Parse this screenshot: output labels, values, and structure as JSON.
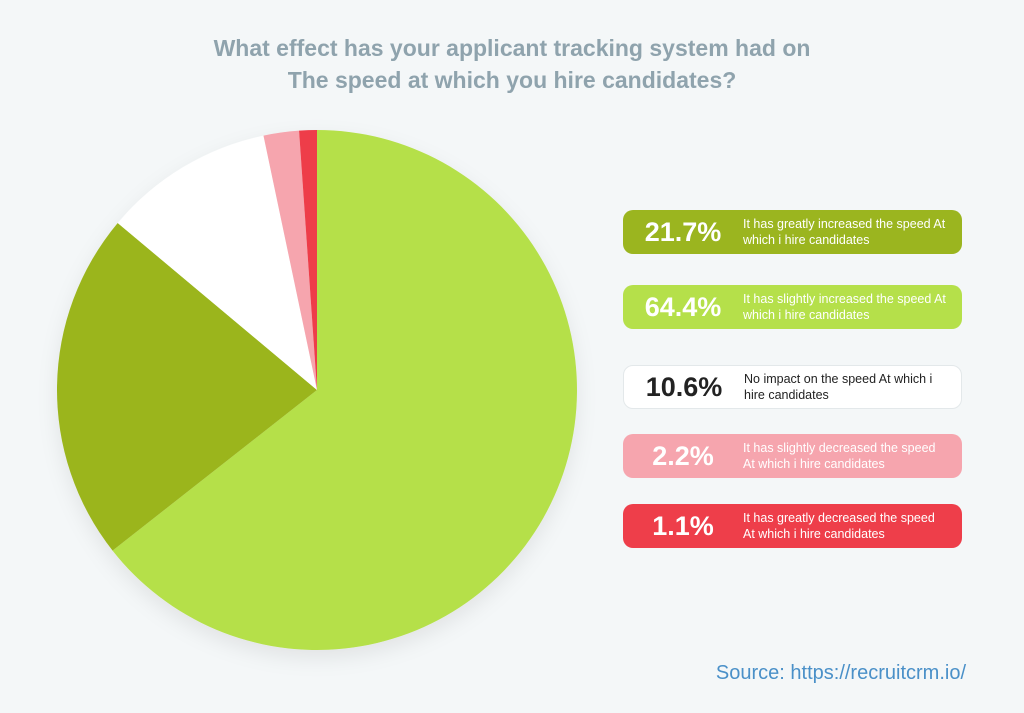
{
  "chart_data": {
    "type": "pie",
    "title": [
      "What effect has your applicant tracking system had on",
      "The speed at which you hire candidates?"
    ],
    "categories": [
      "It has slightly increased the speed At which i hire candidates",
      "It has greatly increased the speed At which i hire candidates",
      "No impact on the speed At which i hire candidates",
      "It has slightly decreased the speed At which i hire candidates",
      "It has greatly decreased the speed At which i hire candidates"
    ],
    "values": [
      64.4,
      21.7,
      10.6,
      2.2,
      1.1
    ],
    "value_labels": [
      "64.4%",
      "21.7%",
      "10.6%",
      "2.2%",
      "1.1%"
    ],
    "colors": [
      "#b5e04a",
      "#9bb51f",
      "#ffffff",
      "#f6a5ae",
      "#ee3e4a"
    ],
    "source": "Source: https://recruitcrm.io/"
  }
}
